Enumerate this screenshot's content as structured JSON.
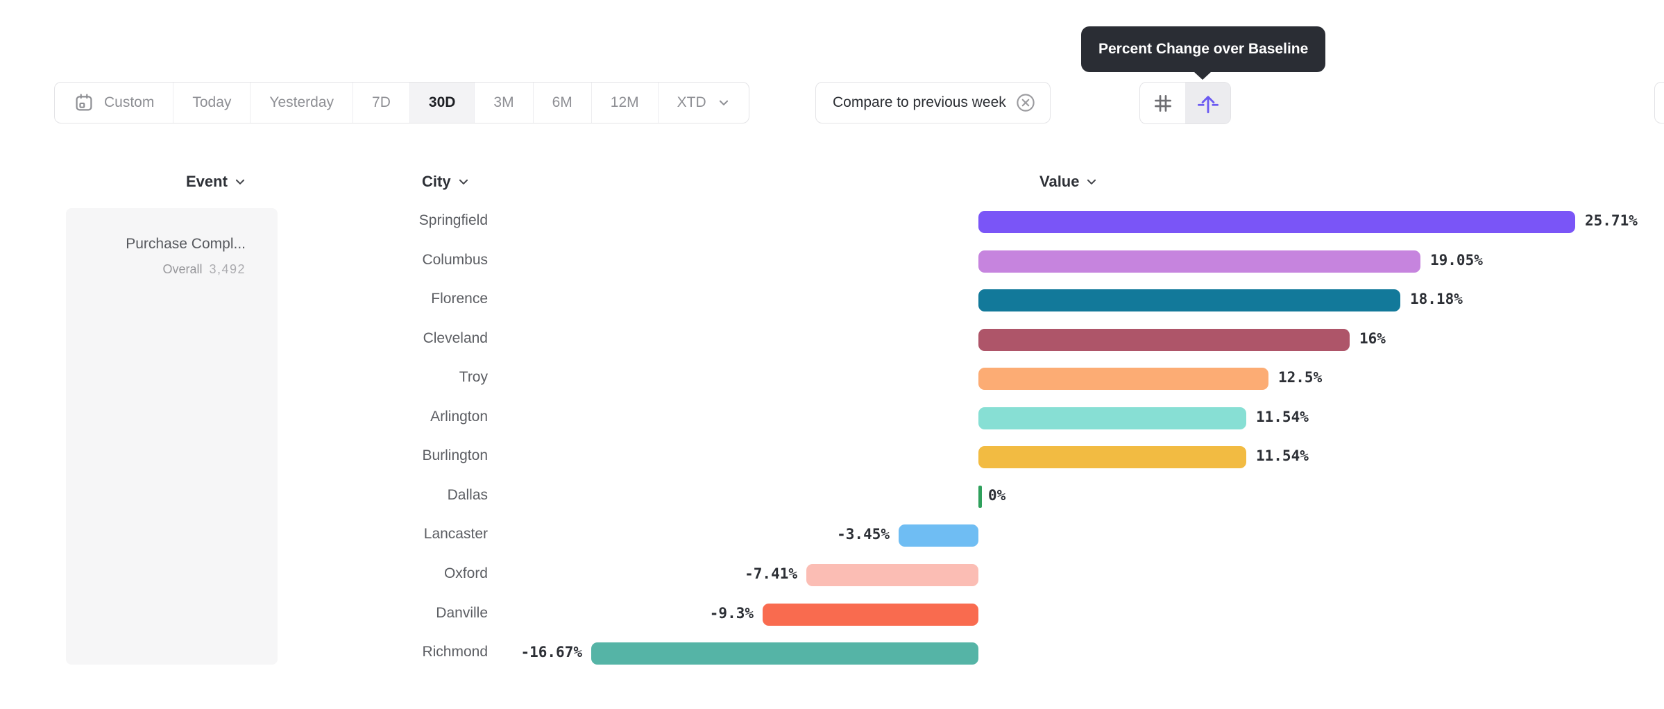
{
  "toolbar": {
    "date_ranges": [
      {
        "label": "Custom",
        "icon": "calendar",
        "selected": false
      },
      {
        "label": "Today",
        "selected": false
      },
      {
        "label": "Yesterday",
        "selected": false
      },
      {
        "label": "7D",
        "selected": false
      },
      {
        "label": "30D",
        "selected": true
      },
      {
        "label": "3M",
        "selected": false
      },
      {
        "label": "6M",
        "selected": false
      },
      {
        "label": "12M",
        "selected": false
      },
      {
        "label": "XTD",
        "chevron": true,
        "selected": false
      }
    ],
    "compare_label": "Compare to previous week",
    "view_toggle": [
      {
        "icon": "grid",
        "selected": false
      },
      {
        "icon": "baseline-arrow",
        "selected": true
      }
    ]
  },
  "tooltip": {
    "text": "Percent Change over Baseline"
  },
  "columns": {
    "event": "Event",
    "city": "City",
    "value": "Value"
  },
  "event_panel": {
    "title": "Purchase Compl...",
    "overall_label": "Overall",
    "overall_value": "3,492"
  },
  "chart_data": {
    "type": "bar",
    "orientation": "horizontal",
    "title": "Percent Change over Baseline",
    "value_column": "Value",
    "unit": "%",
    "categories": [
      "Springfield",
      "Columbus",
      "Florence",
      "Cleveland",
      "Troy",
      "Arlington",
      "Burlington",
      "Dallas",
      "Lancaster",
      "Oxford",
      "Danville",
      "Richmond"
    ],
    "values": [
      25.71,
      19.05,
      18.18,
      16,
      12.5,
      11.54,
      11.54,
      0,
      -3.45,
      -7.41,
      -9.3,
      -16.67
    ],
    "labels": [
      "25.71%",
      "19.05%",
      "18.18%",
      "16%",
      "12.5%",
      "11.54%",
      "11.54%",
      "0%",
      "-3.45%",
      "-7.41%",
      "-9.3%",
      "-16.67%"
    ],
    "colors": [
      "#7a55f7",
      "#c684de",
      "#12799a",
      "#ae5569",
      "#fcac74",
      "#87dfd4",
      "#f2bb42",
      "#2fa05c",
      "#6fbdf3",
      "#fbbdb4",
      "#f96b4f",
      "#55b4a6"
    ],
    "xlim": [
      -16.67,
      25.71
    ],
    "grid": false,
    "legend": false
  }
}
